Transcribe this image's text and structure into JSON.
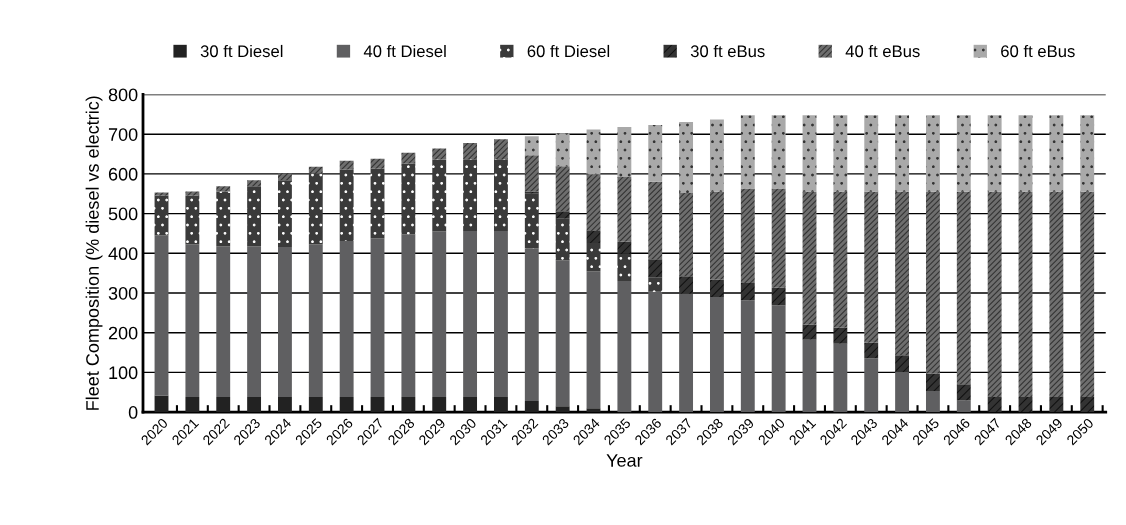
{
  "chart_data": {
    "type": "bar",
    "stacked": true,
    "xlabel": "Year",
    "ylabel": "Fleet Composition (% diesel vs electric)",
    "categories": [
      "2020",
      "2021",
      "2022",
      "2023",
      "2024",
      "2025",
      "2026",
      "2027",
      "2028",
      "2029",
      "2030",
      "2031",
      "2032",
      "2033",
      "2034",
      "2035",
      "2036",
      "2037",
      "2038",
      "2039",
      "2040",
      "2041",
      "2042",
      "2043",
      "2044",
      "2045",
      "2046",
      "2047",
      "2048",
      "2049",
      "2050"
    ],
    "series": [
      {
        "name": "30 ft Diesel",
        "color": "#222222",
        "values": [
          42,
          38,
          38,
          38,
          38,
          38,
          38,
          38,
          38,
          38,
          38,
          38,
          28,
          15,
          10,
          0,
          0,
          0,
          0,
          0,
          0,
          0,
          0,
          0,
          0,
          0,
          0,
          0,
          0,
          0,
          0
        ]
      },
      {
        "name": "40 ft Diesel",
        "color": "#5f5f61",
        "values": [
          403,
          384,
          380,
          380,
          378,
          385,
          393,
          399,
          410,
          417,
          418,
          418,
          384,
          367,
          345,
          330,
          303,
          298,
          290,
          282,
          269,
          182,
          172,
          136,
          101,
          53,
          29,
          0,
          0,
          0,
          0
        ]
      },
      {
        "name": "60 ft Diesel",
        "color": "#3a3a3a",
        "values": [
          100,
          123,
          138,
          151,
          168,
          178,
          180,
          176,
          178,
          181,
          181,
          181,
          138,
          105,
          71,
          69,
          37,
          0,
          0,
          0,
          0,
          0,
          0,
          0,
          0,
          0,
          0,
          0,
          0,
          0,
          0
        ]
      },
      {
        "name": "30 ft eBus",
        "color": "#333333",
        "values": [
          0,
          0,
          0,
          0,
          0,
          0,
          0,
          0,
          0,
          0,
          0,
          0,
          6,
          19,
          30,
          30,
          45,
          44,
          44,
          43,
          44,
          39,
          41,
          39,
          42,
          44,
          41,
          38,
          38,
          38,
          38
        ]
      },
      {
        "name": "40 ft eBus",
        "color": "#6e6e6e",
        "values": [
          8,
          11,
          13,
          15,
          17,
          17,
          22,
          25,
          27,
          28,
          41,
          50,
          91,
          113,
          143,
          163,
          195,
          210,
          221,
          238,
          250,
          334,
          342,
          380,
          412,
          458,
          485,
          517,
          517,
          517,
          517
        ]
      },
      {
        "name": "60 ft eBus",
        "color": "#a9a9a9",
        "values": [
          0,
          0,
          0,
          0,
          0,
          0,
          0,
          0,
          0,
          0,
          0,
          0,
          48,
          83,
          113,
          126,
          143,
          179,
          182,
          185,
          185,
          193,
          193,
          193,
          193,
          193,
          193,
          193,
          193,
          193,
          193
        ]
      }
    ],
    "ylim": [
      0,
      800
    ],
    "yticks": [
      0,
      100,
      200,
      300,
      400,
      500,
      600,
      700,
      800
    ],
    "grid": "y",
    "legend": "top"
  }
}
